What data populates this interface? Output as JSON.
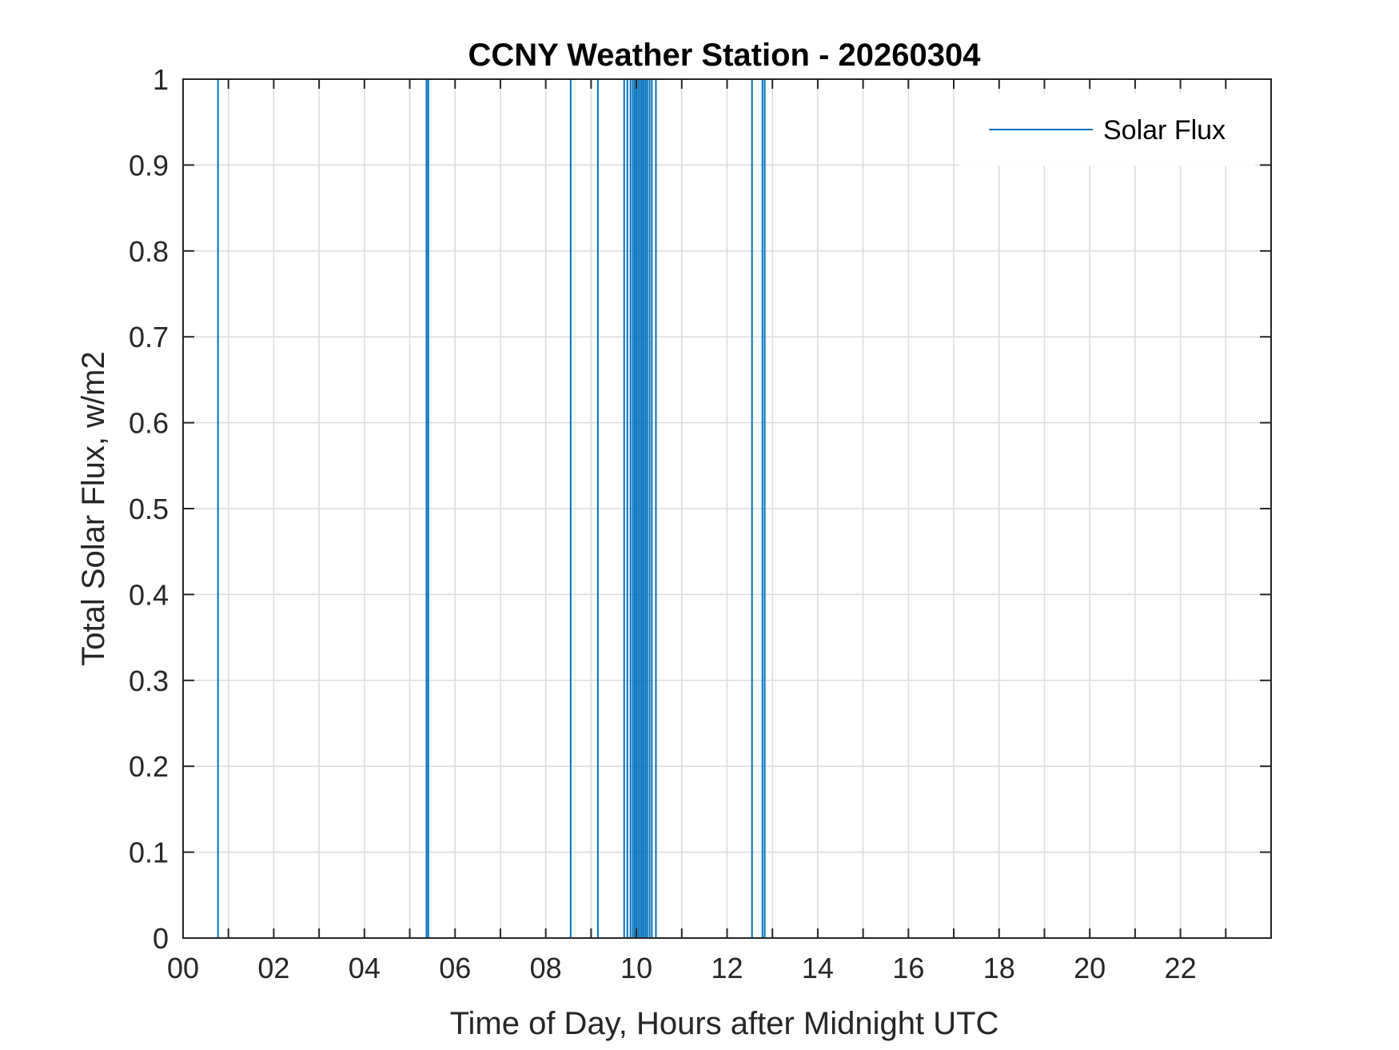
{
  "chart_data": {
    "type": "line",
    "title": "CCNY Weather Station - 20260304",
    "xlabel": "Time of Day, Hours after Midnight UTC",
    "ylabel": "Total Solar Flux, w/m2",
    "xlim": [
      0,
      24
    ],
    "ylim": [
      0,
      1
    ],
    "x_ticks": [
      0,
      2,
      4,
      6,
      8,
      10,
      12,
      14,
      16,
      18,
      20,
      22
    ],
    "x_tick_labels": [
      "00",
      "02",
      "04",
      "06",
      "08",
      "10",
      "12",
      "14",
      "16",
      "18",
      "20",
      "22"
    ],
    "x_minor_grid_step": 1,
    "y_ticks": [
      0,
      0.1,
      0.2,
      0.3,
      0.4,
      0.5,
      0.6,
      0.7,
      0.8,
      0.9,
      1
    ],
    "y_tick_labels": [
      "0",
      "0.1",
      "0.2",
      "0.3",
      "0.4",
      "0.5",
      "0.6",
      "0.7",
      "0.8",
      "0.9",
      "1"
    ],
    "grid": true,
    "legend_position": "top-right",
    "series": [
      {
        "name": "Solar Flux",
        "color": "#0072BD",
        "spike_times": [
          0.77,
          5.37,
          5.41,
          8.55,
          9.15,
          9.73,
          9.8,
          9.87,
          9.92,
          9.96,
          10.0,
          10.04,
          10.08,
          10.12,
          10.16,
          10.2,
          10.24,
          10.29,
          10.34,
          10.43,
          12.55,
          12.78,
          12.83
        ],
        "baseline": 0,
        "peak": 1
      }
    ]
  }
}
